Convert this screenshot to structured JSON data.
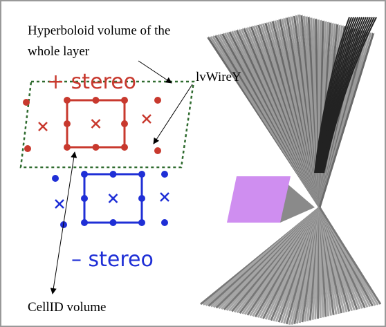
{
  "annotations": {
    "hyperboloid": [
      "Hyperboloid volume of the",
      "whole layer"
    ],
    "wire": "lvWireY",
    "cell": "CellID volume"
  },
  "stereo": {
    "plus": "+ stereo",
    "minus": "– stereo"
  }
}
